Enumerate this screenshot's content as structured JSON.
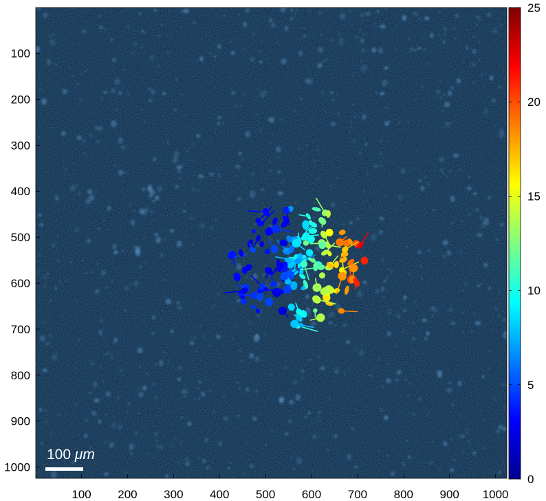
{
  "image": {
    "description_free": true,
    "x_ticks": [
      "100",
      "200",
      "300",
      "400",
      "500",
      "600",
      "700",
      "800",
      "900",
      "1000"
    ],
    "y_ticks": [
      "100",
      "200",
      "300",
      "400",
      "500",
      "600",
      "700",
      "800",
      "900",
      "1000"
    ],
    "x_range": [
      1,
      1024
    ],
    "y_range": [
      1,
      1024
    ],
    "background_color": "#0b2a47",
    "scale_bar": {
      "label_value": "100 ",
      "label_unit": "μm"
    }
  },
  "colorbar": {
    "min": 0,
    "max": 25,
    "ticks": [
      "0",
      "5",
      "10",
      "15",
      "20",
      "25"
    ],
    "colormap": "jet"
  }
}
